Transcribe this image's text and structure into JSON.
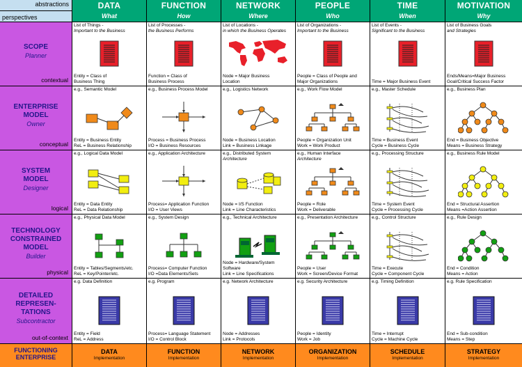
{
  "header": {
    "abstractions": "abstractions",
    "perspectives": "perspectives"
  },
  "columns": [
    {
      "name": "DATA",
      "sub": "What"
    },
    {
      "name": "FUNCTION",
      "sub": "How"
    },
    {
      "name": "NETWORK",
      "sub": "Where"
    },
    {
      "name": "PEOPLE",
      "sub": "Who"
    },
    {
      "name": "TIME",
      "sub": "When"
    },
    {
      "name": "MOTIVATION",
      "sub": "Why"
    }
  ],
  "rows": [
    {
      "title": [
        "SCOPE"
      ],
      "sub": "Planner",
      "lower": "contextual"
    },
    {
      "title": [
        "ENTERPRISE",
        "MODEL"
      ],
      "sub": "Owner",
      "lower": "conceptual"
    },
    {
      "title": [
        "SYSTEM",
        "MODEL"
      ],
      "sub": "Designer",
      "lower": "logical"
    },
    {
      "title": [
        "TECHNOLOGY",
        "CONSTRAINED",
        "MODEL"
      ],
      "sub": "Builder",
      "lower": "physical"
    },
    {
      "title": [
        "DETAILED",
        "REPRESEN-",
        "TATIONS"
      ],
      "sub": "Subcontractor",
      "lower": "out-of-context"
    }
  ],
  "cells": [
    [
      {
        "top1": "List of Things -",
        "top2": "Important to the Business",
        "bot1": "Entity = Class of",
        "bot2": "Business Thing",
        "icon": "document-icon"
      },
      {
        "top1": "List of Processes -",
        "top2": "the Business Performs",
        "bot1": "Function = Class of",
        "bot2": "Business Process",
        "icon": "document-icon"
      },
      {
        "top1": "List of Locations -",
        "top2": "in which the Business Operates",
        "bot1": "Node = Major  Business",
        "bot2": "Location",
        "icon": "world-map-icon"
      },
      {
        "top1": "List of Organizations -",
        "top2": "Important to the Business",
        "bot1": "People = Class of People and",
        "bot2": "Major Organizations",
        "icon": "document-icon"
      },
      {
        "top1": "List of Events -",
        "top2": "Significant to the Business",
        "bot1": "Time = Major Business Event",
        "bot2": "",
        "icon": "document-icon"
      },
      {
        "top1": "List of Business Goals",
        "top2": "and Strategies",
        "bot1": "Ends/Means=Major Business",
        "bot2": "Goal/Critical Success Factor",
        "icon": "document-icon"
      }
    ],
    [
      {
        "top1": "e.g., Semantic Model",
        "top2": "",
        "bot1": "Entity = Business Entity",
        "bot2": "ReL = Business Relationship",
        "icon": "semantic-model-icon"
      },
      {
        "top1": "e.g., Business Process Model",
        "top2": "",
        "bot1": "Process = Business Process",
        "bot2": "I/O = Business Resources",
        "icon": "process-model-icon"
      },
      {
        "top1": "e.g., Logistics Network",
        "top2": "",
        "bot1": "Node = Business Location",
        "bot2": "Link = Business Linkage",
        "icon": "logistics-network-icon"
      },
      {
        "top1": "e.g., Work Flow Model",
        "top2": "",
        "bot1": "People = Organization Unit",
        "bot2": "Work = Work Product",
        "icon": "workflow-icon"
      },
      {
        "top1": "e.g., Master Schedule",
        "top2": "",
        "bot1": "Time = Business Event",
        "bot2": "Cycle = Business Cycle",
        "icon": "schedule-icon"
      },
      {
        "top1": "e.g., Business Plan",
        "top2": "",
        "bot1": "End = Business Objective",
        "bot2": "Means = Business Strategy",
        "icon": "business-plan-tree-icon"
      }
    ],
    [
      {
        "top1": "e.g., Logical Data Model",
        "top2": "",
        "bot1": "Entity = Data Entity",
        "bot2": "ReL = Data Relationship",
        "icon": "logical-data-model-icon"
      },
      {
        "top1": "e.g., Application Architecture",
        "top2": "",
        "bot1": "Process= Application Function",
        "bot2": "I/O  = User Views",
        "icon": "app-architecture-icon"
      },
      {
        "top1": "e.g., Distributed System",
        "top2": "      Architecture",
        "bot1": "Node = I/S Function",
        "bot2": "Link = Line Characteristics",
        "icon": "distributed-system-icon"
      },
      {
        "top1": "e.g., Human Interface",
        "top2": "      Architecture",
        "bot1": "People = Role",
        "bot2": "Work = Deliverable",
        "icon": "workflow-icon"
      },
      {
        "top1": "e.g., Processing Structure",
        "top2": "",
        "bot1": "Time = System Event",
        "bot2": "Cycle = Processing Cycle",
        "icon": "schedule-icon"
      },
      {
        "top1": "e.g., Business Rule Model",
        "top2": "",
        "bot1": "End = Structural Assertion",
        "bot2": "Means =Action Assertion",
        "icon": "business-rule-tree-icon"
      }
    ],
    [
      {
        "top1": "e.g., Physical Data Model",
        "top2": "",
        "bot1": "Entity = Tables/Segments/etc.",
        "bot2": "ReL = Key/Pointer/etc.",
        "icon": "physical-data-model-icon"
      },
      {
        "top1": "e.g., System Design",
        "top2": "",
        "bot1": "Process= Computer Function",
        "bot2": "I/O =Data Elements/Sets",
        "icon": "system-design-icon"
      },
      {
        "top1": "e.g., Technical Architecture",
        "top2": "",
        "bot1": "Node = Hardware/System",
        "bot2": "Software",
        "bot3": "Link = Line Specifications",
        "icon": "hardware-icon"
      },
      {
        "top1": "e.g., Presentation Architecture",
        "top2": "",
        "bot1": "People = User",
        "bot2": "Work = Screen/Device Format",
        "icon": "presentation-icon"
      },
      {
        "top1": "e.g., Control Structure",
        "top2": "",
        "bot1": "Time = Execute",
        "bot2": "Cycle = Component Cycle",
        "icon": "schedule-icon"
      },
      {
        "top1": "e.g., Rule Design",
        "top2": "",
        "bot1": "End = Condition",
        "bot2": "Means = Action",
        "icon": "rule-design-tree-icon"
      }
    ],
    [
      {
        "top1": "e.g. Data Definition",
        "top2": "",
        "bot1": "Entity = Field",
        "bot2": "ReL = Address",
        "icon": "blue-document-icon"
      },
      {
        "top1": "e.g. Program",
        "top2": "",
        "bot1": "Process= Language Statement",
        "bot2": "I/O = Control Block",
        "icon": "blue-document-icon"
      },
      {
        "top1": "e.g. Network Architecture",
        "top2": "",
        "bot1": "Node = Addresses",
        "bot2": "Link = Protocols",
        "icon": "blue-document-icon"
      },
      {
        "top1": "e.g. Security Architecture",
        "top2": "",
        "bot1": "People = Identity",
        "bot2": "Work = Job",
        "icon": "blue-document-icon"
      },
      {
        "top1": "e.g. Timing Definition",
        "top2": "",
        "bot1": "Time = Interrupt",
        "bot2": "Cycle = Machine Cycle",
        "icon": "blue-document-icon"
      },
      {
        "top1": "e.g. Rule Specification",
        "top2": "",
        "bot1": "End = Sub-condition",
        "bot2": "Means = Step",
        "icon": "blue-document-icon"
      }
    ]
  ],
  "footer": {
    "row_label_1": "FUNCTIONING",
    "row_label_2": "ENTERPRISE",
    "items": [
      {
        "name": "DATA",
        "sub": "Implementation"
      },
      {
        "name": "FUNCTION",
        "sub": "Implementation"
      },
      {
        "name": "NETWORK",
        "sub": "Implementation"
      },
      {
        "name": "ORGANIZATION",
        "sub": "Implementation"
      },
      {
        "name": "SCHEDULE",
        "sub": "Implementation"
      },
      {
        "name": "STRATEGY",
        "sub": "Implementation"
      }
    ]
  },
  "colors": {
    "column_header": "#00a676",
    "row_header": "#c957e2",
    "footer": "#ff8a1e",
    "corner": "#c5dff0",
    "doc_red": "#e8202a",
    "doc_blue": "#3a3aa8",
    "node_orange": "#f08a1a",
    "node_yellow": "#f2ee10",
    "node_green": "#12a012"
  }
}
